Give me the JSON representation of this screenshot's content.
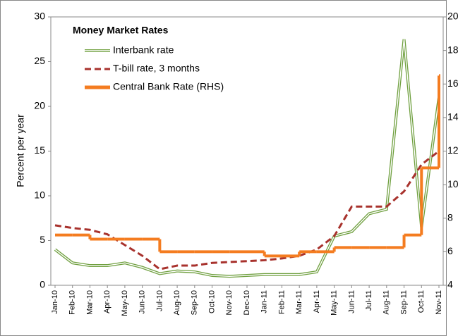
{
  "chart_data": {
    "type": "line",
    "title": "Money Market Rates",
    "y_label": "Percent per year",
    "categories": [
      "Jan-10",
      "Feb-10",
      "Mar-10",
      "Apr-10",
      "May-10",
      "Jun-10",
      "Jul-10",
      "Aug-10",
      "Sep-10",
      "Oct-10",
      "Nov-10",
      "Dec-10",
      "Jan-11",
      "Feb-11",
      "Mar-11",
      "Apr-11",
      "May-11",
      "Jun-11",
      "Jul-11",
      "Aug-11",
      "Sep-11",
      "Oct-11",
      "Nov-11"
    ],
    "series": [
      {
        "name": "Interbank rate",
        "color": "#70a040",
        "style": "double",
        "values": [
          4,
          2.5,
          2.2,
          2.2,
          2.5,
          2.0,
          1.3,
          1.6,
          1.5,
          1.1,
          1.0,
          1.1,
          1.2,
          1.2,
          1.2,
          1.5,
          5.5,
          6.0,
          8.0,
          8.5,
          27.5,
          6.5,
          21
        ]
      },
      {
        "name": "T-bill rate, 3 months",
        "color": "#a8322d",
        "style": "dashed",
        "values": [
          6.7,
          6.4,
          6.2,
          5.7,
          4.5,
          3.3,
          1.8,
          2.2,
          2.2,
          2.5,
          2.6,
          2.7,
          2.8,
          3.0,
          3.3,
          4.0,
          5.5,
          8.8,
          8.8,
          8.8,
          10.5,
          13.5,
          15
        ]
      },
      {
        "name": "Central Bank Rate (RHS)",
        "color": "#f47c20",
        "style": "step",
        "axis": "y2",
        "values": [
          7,
          7,
          6.75,
          6.75,
          6.75,
          6.75,
          6,
          6,
          6,
          6,
          6,
          6,
          5.75,
          5.75,
          6,
          6,
          6.25,
          6.25,
          6.25,
          6.25,
          7,
          11,
          16.5
        ]
      }
    ],
    "ylim": [
      0,
      30
    ],
    "yticks": [
      0,
      5,
      10,
      15,
      20,
      25,
      30
    ],
    "y2lim": [
      4,
      20
    ],
    "y2ticks": [
      4,
      6,
      8,
      10,
      12,
      14,
      16,
      18,
      20
    ]
  }
}
